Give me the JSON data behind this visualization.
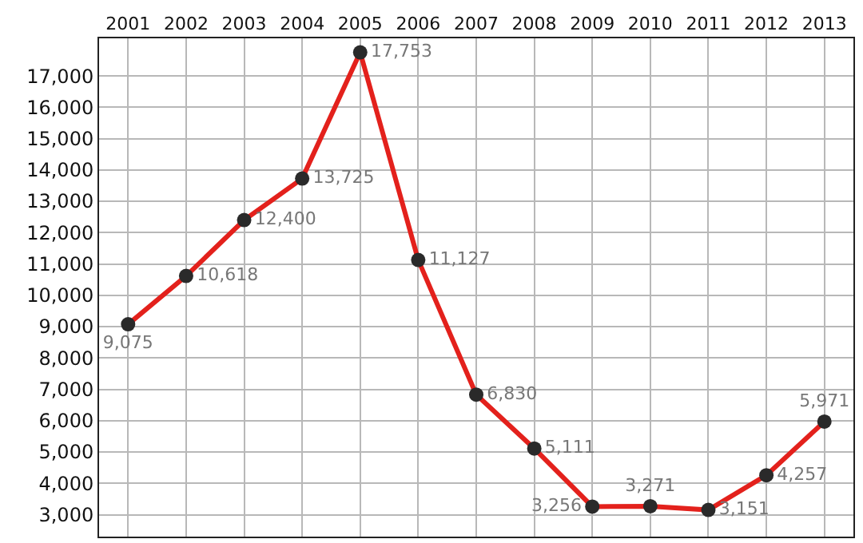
{
  "chart_data": {
    "type": "line",
    "categories": [
      "2001",
      "2002",
      "2003",
      "2004",
      "2005",
      "2006",
      "2007",
      "2008",
      "2009",
      "2010",
      "2011",
      "2012",
      "2013"
    ],
    "series": [
      {
        "color": "#e3211c",
        "values": [
          9075,
          10618,
          12400,
          13725,
          17753,
          11127,
          6830,
          5111,
          3256,
          3271,
          3151,
          4257,
          5971
        ],
        "value_labels": [
          "9,075",
          "10,618",
          "12,400",
          "13,725",
          "17,753",
          "11,127",
          "6,830",
          "5,111",
          "3,256",
          "3,271",
          "3,151",
          "4,257",
          "5,971"
        ]
      }
    ],
    "ylim": [
      2300,
      18200
    ],
    "yticks": [
      {
        "value": 3000,
        "label": "3,000"
      },
      {
        "value": 4000,
        "label": "4,000"
      },
      {
        "value": 5000,
        "label": "5,000"
      },
      {
        "value": 6000,
        "label": "6,000"
      },
      {
        "value": 7000,
        "label": "7,000"
      },
      {
        "value": 8000,
        "label": "8,000"
      },
      {
        "value": 9000,
        "label": "9,000"
      },
      {
        "value": 10000,
        "label": "10,000"
      },
      {
        "value": 11000,
        "label": "11,000"
      },
      {
        "value": 12000,
        "label": "12,000"
      },
      {
        "value": 13000,
        "label": "13,000"
      },
      {
        "value": 14000,
        "label": "14,000"
      },
      {
        "value": 15000,
        "label": "15,000"
      },
      {
        "value": 16000,
        "label": "16,000"
      },
      {
        "value": 17000,
        "label": "17,000"
      }
    ],
    "grid": true,
    "marker": "circle",
    "line_style": "solid"
  }
}
